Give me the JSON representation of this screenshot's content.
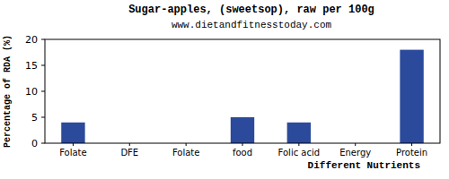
{
  "chart_data": {
    "type": "bar",
    "title": "Sugar-apples, (sweetsop), raw per 100g",
    "subtitle": "www.dietandfitnesstoday.com",
    "x_label": "Different Nutrients",
    "y_label": "Percentage of RDA (%)",
    "categories": [
      "Folate",
      "DFE",
      "Folate",
      "food",
      "Folic acid",
      "Energy",
      "Protein"
    ],
    "values": [
      4,
      0,
      0,
      5,
      4,
      0,
      18
    ],
    "color": "#2b4a9b",
    "ylim": [
      0,
      20
    ],
    "yticks": [
      0,
      5,
      10,
      15,
      20
    ],
    "grid": false
  }
}
